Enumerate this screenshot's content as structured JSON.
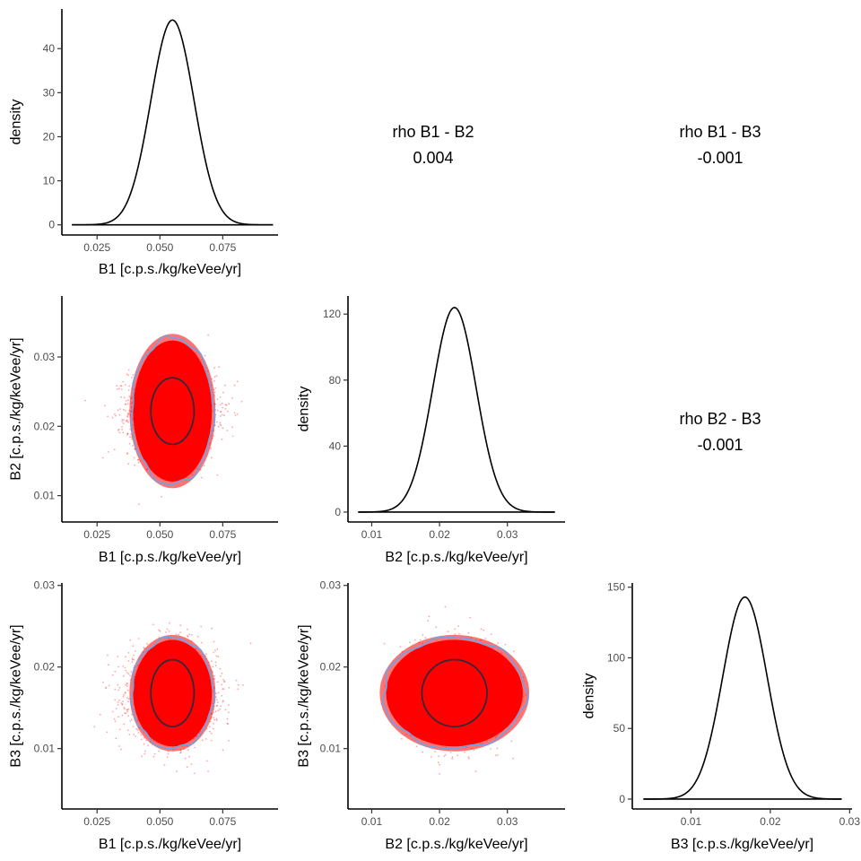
{
  "chart_data": [
    {
      "type": "line",
      "panel": "B1-density",
      "xlabel": "B1 [c.p.s./kg/keVee/yr]",
      "ylabel": "density",
      "xlim": [
        0.011,
        0.097
      ],
      "ylim": [
        -2.3,
        49
      ],
      "xticks": [
        {
          "v": 0.025,
          "label": "0.025"
        },
        {
          "v": 0.05,
          "label": "0.050"
        },
        {
          "v": 0.075,
          "label": "0.075"
        }
      ],
      "yticks": [
        {
          "v": 0,
          "label": "0"
        },
        {
          "v": 10,
          "label": "10"
        },
        {
          "v": 20,
          "label": "20"
        },
        {
          "v": 30,
          "label": "30"
        },
        {
          "v": 40,
          "label": "40"
        }
      ],
      "series": [
        {
          "curve": "gaussian",
          "mean": 0.055,
          "sd": 0.0086,
          "peak": 46.5,
          "xrange": [
            0.015,
            0.095
          ]
        }
      ]
    },
    {
      "type": "table",
      "panel": "rho-B1-B2",
      "label": "rho B1 - B2",
      "value": "0.004"
    },
    {
      "type": "table",
      "panel": "rho-B1-B3",
      "label": "rho B1 - B3",
      "value": "-0.001"
    },
    {
      "type": "scatter",
      "panel": "B1-B2",
      "xlabel": "B1 [c.p.s./kg/keVee/yr]",
      "ylabel": "B2 [c.p.s./kg/keVee/yr]",
      "xlim": [
        0.011,
        0.097
      ],
      "ylim": [
        0.0062,
        0.0388
      ],
      "xticks": [
        {
          "v": 0.025,
          "label": "0.025"
        },
        {
          "v": 0.05,
          "label": "0.050"
        },
        {
          "v": 0.075,
          "label": "0.075"
        }
      ],
      "yticks": [
        {
          "v": 0.01,
          "label": "0.01"
        },
        {
          "v": 0.02,
          "label": "0.02"
        },
        {
          "v": 0.03,
          "label": "0.03"
        }
      ],
      "center": [
        0.055,
        0.0222
      ],
      "spread": [
        0.0086,
        0.0032
      ],
      "contours": [
        {
          "level": "inner",
          "radius": [
            0.0086,
            0.0048
          ]
        },
        {
          "level": "outer",
          "radius": [
            0.0163,
            0.0106
          ]
        }
      ]
    },
    {
      "type": "line",
      "panel": "B2-density",
      "xlabel": "B2 [c.p.s./kg/keVee/yr]",
      "ylabel": "density",
      "xlim": [
        0.0065,
        0.0385
      ],
      "ylim": [
        -6,
        131
      ],
      "xticks": [
        {
          "v": 0.01,
          "label": "0.01"
        },
        {
          "v": 0.02,
          "label": "0.02"
        },
        {
          "v": 0.03,
          "label": "0.03"
        }
      ],
      "yticks": [
        {
          "v": 0,
          "label": "0"
        },
        {
          "v": 40,
          "label": "40"
        },
        {
          "v": 80,
          "label": "80"
        },
        {
          "v": 120,
          "label": "120"
        }
      ],
      "series": [
        {
          "curve": "gaussian",
          "mean": 0.0222,
          "sd": 0.0032,
          "peak": 124,
          "xrange": [
            0.008,
            0.037
          ]
        }
      ]
    },
    {
      "type": "table",
      "panel": "rho-B2-B3",
      "label": "rho B2 - B3",
      "value": "-0.001"
    },
    {
      "type": "scatter",
      "panel": "B1-B3",
      "xlabel": "B1 [c.p.s./kg/keVee/yr]",
      "ylabel": "B3 [c.p.s./kg/keVee/yr]",
      "xlim": [
        0.011,
        0.097
      ],
      "ylim": [
        0.0026,
        0.0303
      ],
      "xticks": [
        {
          "v": 0.025,
          "label": "0.025"
        },
        {
          "v": 0.05,
          "label": "0.050"
        },
        {
          "v": 0.075,
          "label": "0.075"
        }
      ],
      "yticks": [
        {
          "v": 0.01,
          "label": "0.01"
        },
        {
          "v": 0.02,
          "label": "0.02"
        },
        {
          "v": 0.03,
          "label": "0.03"
        }
      ],
      "center": [
        0.055,
        0.0168
      ],
      "spread": [
        0.0086,
        0.0028
      ],
      "contours": [
        {
          "level": "inner",
          "radius": [
            0.0086,
            0.0041
          ]
        },
        {
          "level": "outer",
          "radius": [
            0.0163,
            0.0068
          ]
        }
      ]
    },
    {
      "type": "scatter",
      "panel": "B2-B3",
      "xlabel": "B2 [c.p.s./kg/keVee/yr]",
      "ylabel": "B3 [c.p.s./kg/keVee/yr]",
      "xlim": [
        0.0065,
        0.0385
      ],
      "ylim": [
        0.0026,
        0.0303
      ],
      "xticks": [
        {
          "v": 0.01,
          "label": "0.01"
        },
        {
          "v": 0.02,
          "label": "0.02"
        },
        {
          "v": 0.03,
          "label": "0.03"
        }
      ],
      "yticks": [
        {
          "v": 0.01,
          "label": "0.01"
        },
        {
          "v": 0.02,
          "label": "0.02"
        },
        {
          "v": 0.03,
          "label": "0.03"
        }
      ],
      "center": [
        0.0222,
        0.0168
      ],
      "spread": [
        0.0032,
        0.0028
      ],
      "contours": [
        {
          "level": "inner",
          "radius": [
            0.0048,
            0.0041
          ]
        },
        {
          "level": "outer",
          "radius": [
            0.0105,
            0.0068
          ]
        }
      ]
    },
    {
      "type": "line",
      "panel": "B3-density",
      "xlabel": "B3 [c.p.s./kg/keVee/yr]",
      "ylabel": "density",
      "xlim": [
        0.0026,
        0.0303
      ],
      "ylim": [
        -7,
        153
      ],
      "xticks": [
        {
          "v": 0.01,
          "label": "0.01"
        },
        {
          "v": 0.02,
          "label": "0.02"
        },
        {
          "v": 0.03,
          "label": "0.03"
        }
      ],
      "yticks": [
        {
          "v": 0,
          "label": "0"
        },
        {
          "v": 50,
          "label": "50"
        },
        {
          "v": 100,
          "label": "100"
        },
        {
          "v": 150,
          "label": "150"
        }
      ],
      "series": [
        {
          "curve": "gaussian",
          "mean": 0.0168,
          "sd": 0.0028,
          "peak": 143,
          "xrange": [
            0.004,
            0.029
          ]
        }
      ]
    }
  ],
  "colors": {
    "points": "#ff0000",
    "inner_contour": "#2a2a3a",
    "outer_contour": "#6fa3e6",
    "density_line": "#000000"
  }
}
